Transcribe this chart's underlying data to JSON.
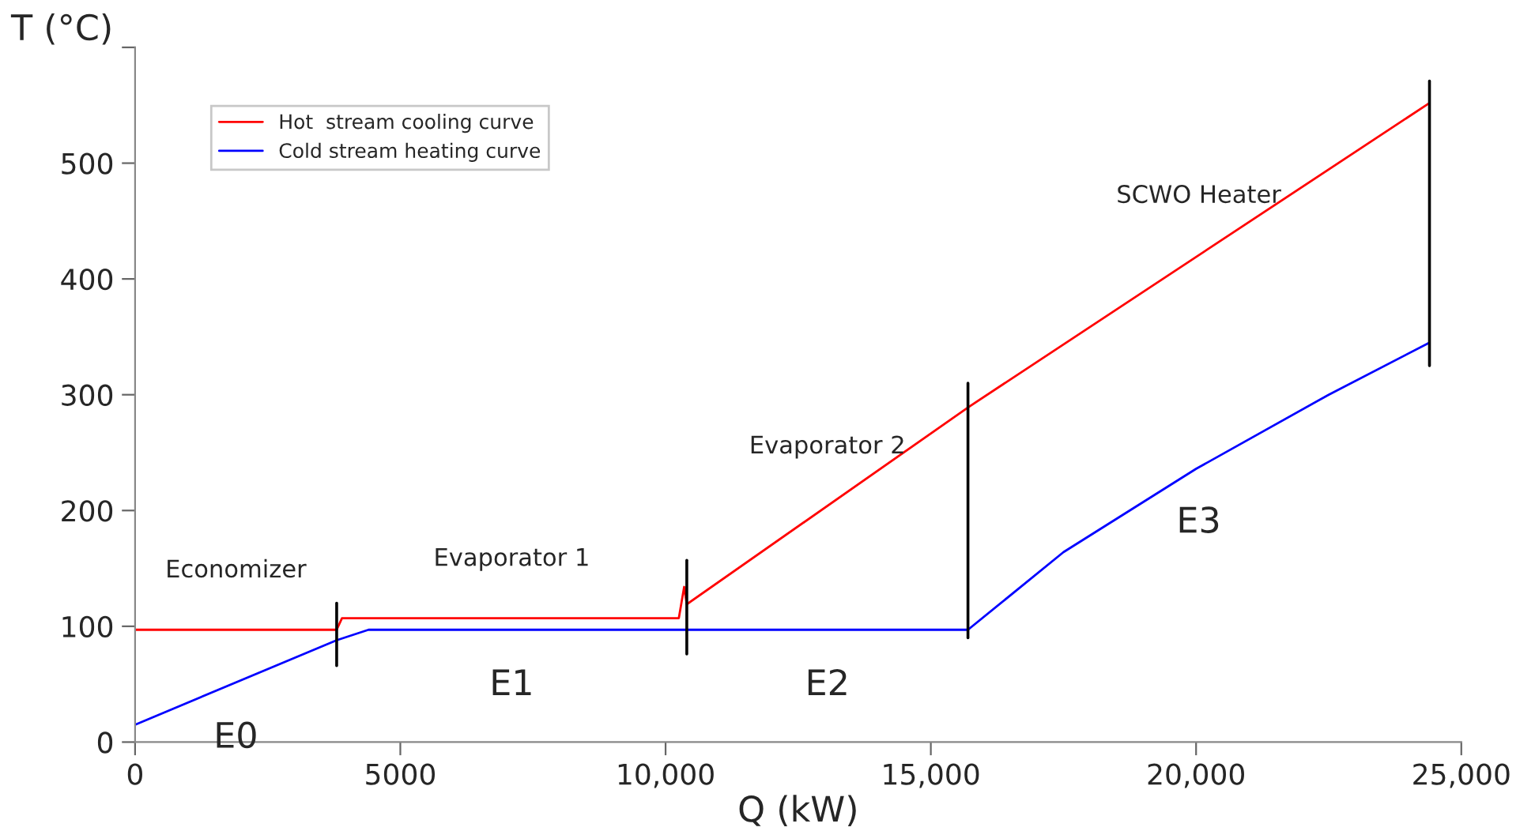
{
  "chart_data": {
    "type": "line",
    "xlabel": "Q (kW)",
    "ylabel": "T (°C)",
    "xlim": [
      0,
      25000
    ],
    "ylim": [
      0,
      600
    ],
    "xticks": [
      0,
      5000,
      {
        "value": 10000,
        "label": "10,000"
      },
      {
        "value": 15000,
        "label": "15,000"
      },
      {
        "value": 20000,
        "label": "20,000"
      },
      {
        "value": 25000,
        "label": "25,000"
      }
    ],
    "yticks": [
      0,
      100,
      200,
      300,
      400,
      500,
      {
        "value": 600,
        "label": null
      }
    ],
    "grid": false,
    "legend": "top left",
    "series": [
      {
        "name": "Hot  stream cooling curve",
        "color": "#ff0000",
        "x": [
          0,
          3800,
          3900,
          10250,
          10350,
          10400,
          15700,
          24400
        ],
        "values": [
          97,
          97,
          107,
          107,
          134,
          119,
          289,
          552
        ]
      },
      {
        "name": "Cold stream heating curve",
        "color": "#0000ff",
        "x": [
          0,
          3800,
          4400,
          15700,
          17500,
          20000,
          22500,
          24400
        ],
        "values": [
          15,
          88,
          97,
          97,
          164,
          236,
          300,
          345
        ]
      },
      {
        "color": "#000000",
        "x": [
          3800,
          3800
        ],
        "values": [
          66,
          120
        ]
      },
      {
        "color": "#000000",
        "x": [
          10400,
          10400
        ],
        "values": [
          76,
          157
        ]
      },
      {
        "color": "#000000",
        "x": [
          15700,
          15700
        ],
        "values": [
          90,
          310
        ]
      },
      {
        "color": "#000000",
        "x": [
          24400,
          24400
        ],
        "values": [
          325,
          571
        ]
      }
    ],
    "annotations": [
      "Economizer",
      "Evaporator 1",
      "Evaporator 2",
      "SCWO Heater",
      "E0",
      "E1",
      "E2",
      "E3"
    ]
  }
}
